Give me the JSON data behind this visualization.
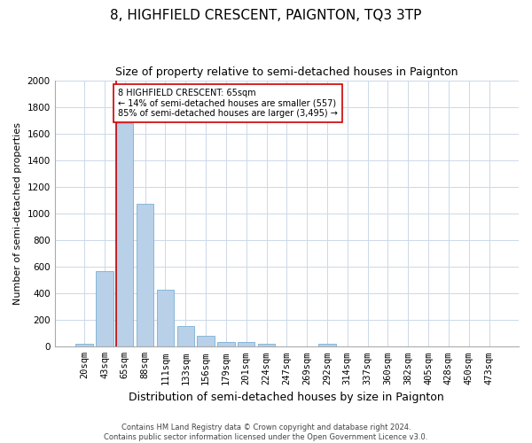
{
  "title": "8, HIGHFIELD CRESCENT, PAIGNTON, TQ3 3TP",
  "subtitle": "Size of property relative to semi-detached houses in Paignton",
  "xlabel": "Distribution of semi-detached houses by size in Paignton",
  "ylabel": "Number of semi-detached properties",
  "footer_line1": "Contains HM Land Registry data © Crown copyright and database right 2024.",
  "footer_line2": "Contains public sector information licensed under the Open Government Licence v3.0.",
  "categories": [
    "20sqm",
    "43sqm",
    "65sqm",
    "88sqm",
    "111sqm",
    "133sqm",
    "156sqm",
    "179sqm",
    "201sqm",
    "224sqm",
    "247sqm",
    "269sqm",
    "292sqm",
    "314sqm",
    "337sqm",
    "360sqm",
    "382sqm",
    "405sqm",
    "428sqm",
    "450sqm",
    "473sqm"
  ],
  "values": [
    20,
    570,
    1680,
    1070,
    430,
    155,
    80,
    35,
    35,
    20,
    0,
    0,
    20,
    0,
    0,
    0,
    0,
    0,
    0,
    0,
    0
  ],
  "bar_color": "#b8d0e8",
  "bar_edge_color": "#7aafd4",
  "highlight_index": 2,
  "highlight_line_color": "#cc0000",
  "annotation_text": "8 HIGHFIELD CRESCENT: 65sqm\n← 14% of semi-detached houses are smaller (557)\n85% of semi-detached houses are larger (3,495) →",
  "annotation_box_color": "#cc0000",
  "ylim": [
    0,
    2000
  ],
  "yticks": [
    0,
    200,
    400,
    600,
    800,
    1000,
    1200,
    1400,
    1600,
    1800,
    2000
  ],
  "background_color": "#ffffff",
  "grid_color": "#ccd8e8",
  "title_fontsize": 11,
  "subtitle_fontsize": 9,
  "ylabel_fontsize": 8,
  "xlabel_fontsize": 9,
  "tick_fontsize": 7.5,
  "annotation_fontsize": 7,
  "footer_fontsize": 6
}
